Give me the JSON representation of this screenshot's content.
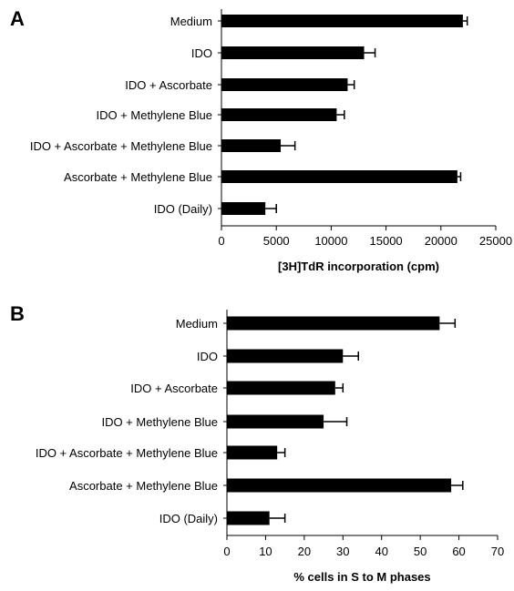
{
  "chart_data": [
    {
      "panel": "A",
      "type": "bar",
      "orientation": "horizontal",
      "categories": [
        "Medium",
        "IDO",
        "IDO + Ascorbate",
        "IDO + Methylene Blue",
        "IDO + Ascorbate + Methylene Blue",
        "Ascorbate + Methylene Blue",
        "IDO (Daily)"
      ],
      "values": [
        22000,
        13000,
        11500,
        10500,
        5400,
        21500,
        4000
      ],
      "errors": [
        400,
        1000,
        600,
        700,
        1300,
        300,
        1000
      ],
      "xlabel": "[3H]TdR incorporation (cpm)",
      "xlim": [
        0,
        25000
      ],
      "xticks": [
        0,
        5000,
        10000,
        15000,
        20000,
        25000
      ],
      "grid": false,
      "bar_color": "#000000"
    },
    {
      "panel": "B",
      "type": "bar",
      "orientation": "horizontal",
      "categories": [
        "Medium",
        "IDO",
        "IDO + Ascorbate",
        "IDO + Methylene Blue",
        "IDO + Ascorbate + Methylene Blue",
        "Ascorbate + Methylene Blue",
        "IDO (Daily)"
      ],
      "values": [
        55,
        30,
        28,
        25,
        13,
        58,
        11
      ],
      "errors": [
        4,
        4,
        2,
        6,
        2,
        3,
        4
      ],
      "xlabel": "% cells in S to M phases",
      "xlim": [
        0,
        70
      ],
      "xticks": [
        0,
        10,
        20,
        30,
        40,
        50,
        60,
        70
      ],
      "grid": false,
      "bar_color": "#000000"
    }
  ]
}
